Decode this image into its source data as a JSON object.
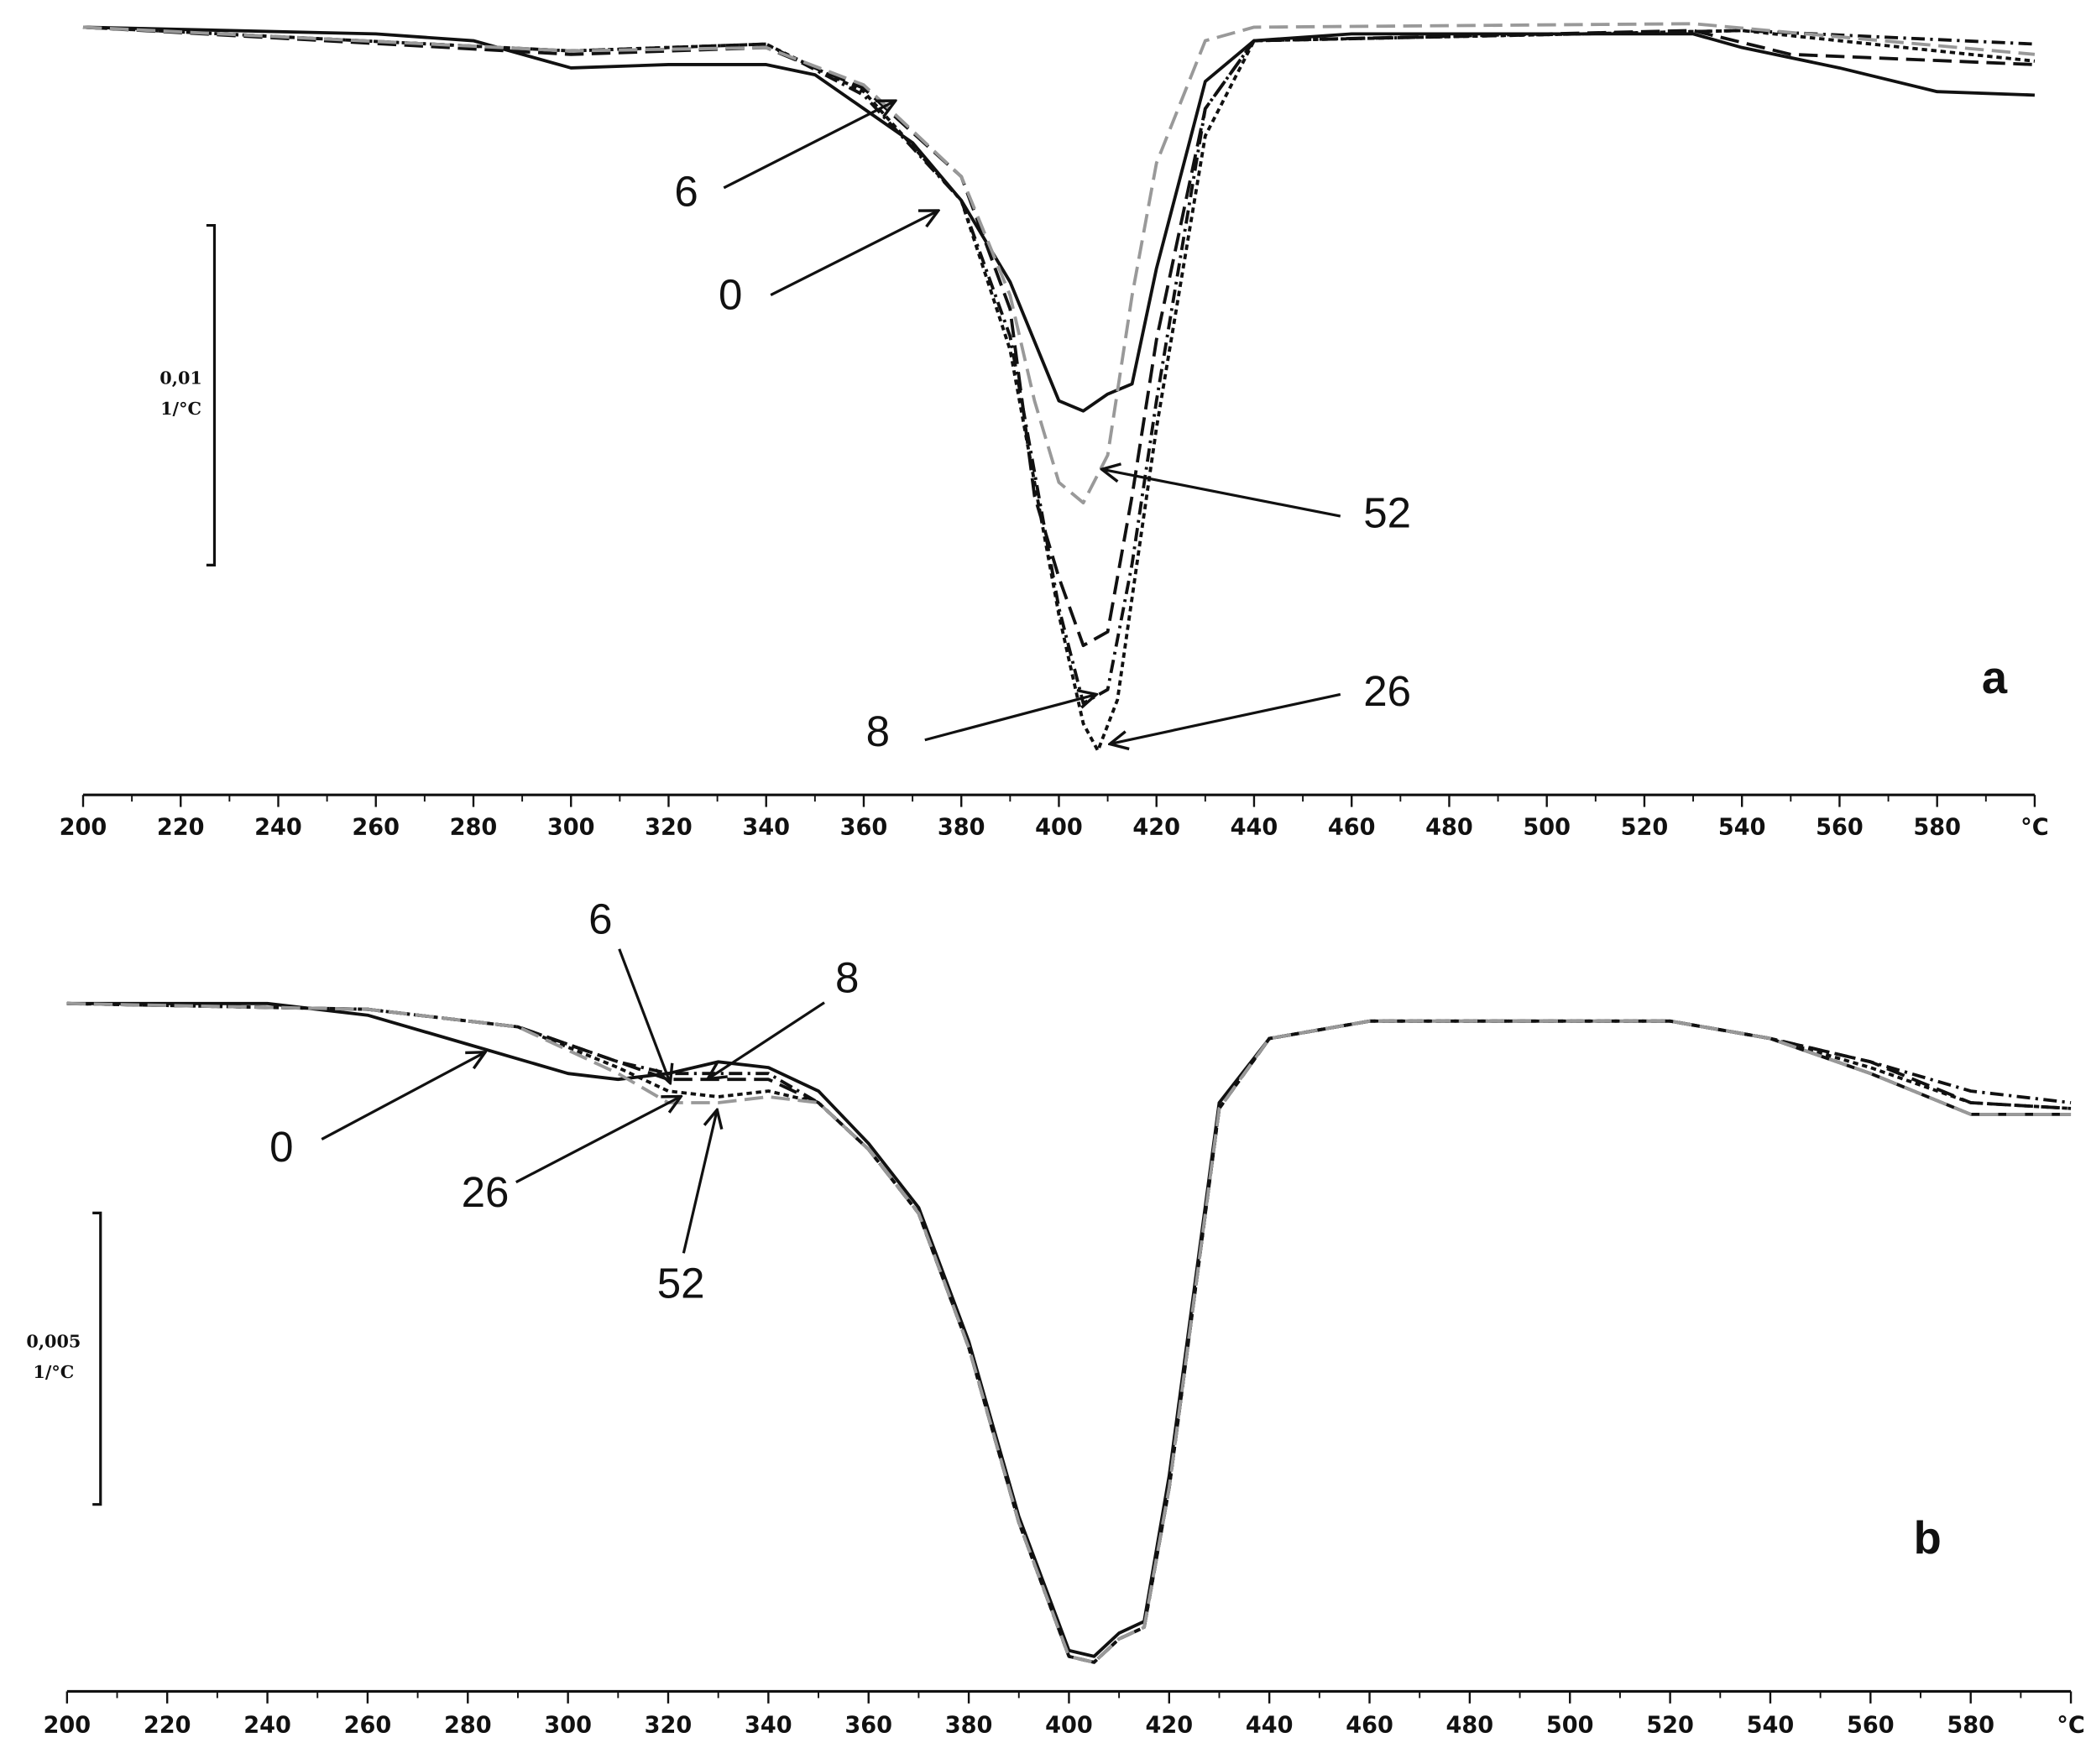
{
  "chart_data": [
    {
      "type": "line",
      "label": "a",
      "xlim": [
        200,
        600
      ],
      "ylim": [
        -0.0225,
        0.0003
      ],
      "xticks": [
        200,
        220,
        240,
        260,
        280,
        300,
        320,
        340,
        360,
        380,
        400,
        420,
        440,
        460,
        480,
        500,
        520,
        540,
        560,
        580,
        {
          "value": 600,
          "label": "°C"
        }
      ],
      "xticks_minor": [
        210,
        230,
        250,
        270,
        290,
        310,
        330,
        350,
        370,
        390,
        410,
        430,
        450,
        470,
        490,
        510,
        530,
        550,
        570,
        590
      ],
      "scale_bar": {
        "value": 0.01,
        "label": "0,01",
        "unit": "1/°C"
      },
      "series": [
        {
          "name": "0",
          "color": "#111111",
          "line_style": "solid",
          "x": [
            200,
            260,
            280,
            300,
            320,
            340,
            350,
            360,
            370,
            380,
            390,
            400,
            405,
            410,
            415,
            420,
            430,
            440,
            460,
            530,
            540,
            560,
            580,
            600
          ],
          "values": [
            0.0001,
            -0.0001,
            -0.0003,
            -0.0011,
            -0.001,
            -0.001,
            -0.0013,
            -0.0023,
            -0.0033,
            -0.005,
            -0.0074,
            -0.0109,
            -0.0112,
            -0.0107,
            -0.0104,
            -0.007,
            -0.0015,
            -0.0003,
            -0.0001,
            -0.0001,
            -0.0005,
            -0.0011,
            -0.0018,
            -0.0019
          ]
        },
        {
          "name": "6",
          "color": "#111111",
          "line_style": "long-dash",
          "x": [
            200,
            300,
            340,
            360,
            380,
            390,
            395,
            400,
            405,
            410,
            415,
            420,
            430,
            440,
            530,
            550,
            600
          ],
          "values": [
            0.0001,
            -0.0007,
            -0.0005,
            -0.0017,
            -0.0043,
            -0.0082,
            -0.0137,
            -0.0161,
            -0.0181,
            -0.0177,
            -0.0137,
            -0.0091,
            -0.0023,
            -0.0003,
            0.0,
            -0.0007,
            -0.001
          ]
        },
        {
          "name": "8",
          "color": "#111111",
          "line_style": "dash-dot",
          "x": [
            200,
            300,
            340,
            360,
            380,
            390,
            400,
            405,
            410,
            415,
            420,
            430,
            440,
            540,
            600
          ],
          "values": [
            0.0001,
            -0.0006,
            -0.0004,
            -0.0019,
            -0.005,
            -0.009,
            -0.017,
            -0.0198,
            -0.0194,
            -0.0157,
            -0.0109,
            -0.0023,
            -0.0003,
            0.0,
            -0.0004
          ]
        },
        {
          "name": "26",
          "color": "#111111",
          "line_style": "short-dash",
          "x": [
            200,
            300,
            340,
            360,
            380,
            390,
            400,
            405,
            408,
            412,
            416,
            420,
            430,
            440,
            540,
            600
          ],
          "values": [
            0.0001,
            -0.0006,
            -0.0004,
            -0.0018,
            -0.005,
            -0.0094,
            -0.0172,
            -0.0204,
            -0.0212,
            -0.0197,
            -0.0157,
            -0.0117,
            -0.0031,
            -0.0003,
            0.0,
            -0.0009
          ]
        },
        {
          "name": "52",
          "color": "#999999",
          "line_style": "long-dash",
          "x": [
            200,
            300,
            340,
            360,
            380,
            390,
            395,
            400,
            405,
            410,
            415,
            420,
            430,
            440,
            530,
            600
          ],
          "values": [
            0.0001,
            -0.0006,
            -0.0005,
            -0.0016,
            -0.0043,
            -0.0078,
            -0.0109,
            -0.0133,
            -0.0139,
            -0.0125,
            -0.0078,
            -0.0039,
            -0.0003,
            0.0001,
            0.0002,
            -0.0007
          ]
        }
      ]
    },
    {
      "type": "line",
      "label": "b",
      "xlim": [
        200,
        600
      ],
      "ylim": [
        -0.0118,
        0.0002
      ],
      "xticks": [
        200,
        220,
        240,
        260,
        280,
        300,
        320,
        340,
        360,
        380,
        400,
        420,
        440,
        460,
        480,
        500,
        520,
        540,
        560,
        580,
        {
          "value": 600,
          "label": "°C"
        }
      ],
      "xticks_minor": [
        210,
        230,
        250,
        270,
        290,
        310,
        330,
        350,
        370,
        390,
        410,
        430,
        450,
        470,
        490,
        510,
        530,
        550,
        570,
        590
      ],
      "scale_bar": {
        "value": 0.005,
        "label": "0,005",
        "unit": "1/°C"
      },
      "series": [
        {
          "name": "0",
          "color": "#111111",
          "line_style": "solid",
          "x": [
            200,
            240,
            260,
            280,
            300,
            310,
            320,
            330,
            340,
            350,
            360,
            370,
            380,
            390,
            400,
            405,
            410,
            415,
            420,
            430,
            440,
            460,
            520,
            540,
            560,
            580,
            600
          ],
          "values": [
            0.0,
            0.0,
            -0.0002,
            -0.0007,
            -0.0012,
            -0.0013,
            -0.0012,
            -0.001,
            -0.0011,
            -0.0015,
            -0.0024,
            -0.0035,
            -0.0058,
            -0.0088,
            -0.0111,
            -0.0112,
            -0.0108,
            -0.0106,
            -0.0081,
            -0.0017,
            -0.0006,
            -0.0003,
            -0.0003,
            -0.0006,
            -0.0012,
            -0.0019,
            -0.0019
          ]
        },
        {
          "name": "6",
          "color": "#111111",
          "line_style": "long-dash",
          "x": [
            200,
            260,
            290,
            310,
            320,
            330,
            340,
            350,
            360,
            370,
            380,
            390,
            400,
            405,
            410,
            415,
            420,
            430,
            440,
            460,
            520,
            540,
            560,
            580,
            600
          ],
          "values": [
            0.0,
            -0.0001,
            -0.0004,
            -0.001,
            -0.0013,
            -0.0013,
            -0.0013,
            -0.0017,
            -0.0025,
            -0.0036,
            -0.0059,
            -0.0089,
            -0.0112,
            -0.0113,
            -0.0109,
            -0.0107,
            -0.0083,
            -0.0018,
            -0.0006,
            -0.0003,
            -0.0003,
            -0.0006,
            -0.001,
            -0.0017,
            -0.0018
          ]
        },
        {
          "name": "8",
          "color": "#111111",
          "line_style": "dash-dot",
          "x": [
            200,
            260,
            290,
            310,
            320,
            330,
            340,
            350,
            360,
            370,
            380,
            390,
            400,
            405,
            410,
            415,
            420,
            430,
            440,
            460,
            520,
            540,
            560,
            580,
            600
          ],
          "values": [
            0.0,
            -0.0001,
            -0.0004,
            -0.001,
            -0.0012,
            -0.0012,
            -0.0012,
            -0.0017,
            -0.0025,
            -0.0036,
            -0.0059,
            -0.0089,
            -0.0112,
            -0.0113,
            -0.0109,
            -0.0107,
            -0.0083,
            -0.0018,
            -0.0006,
            -0.0003,
            -0.0003,
            -0.0006,
            -0.001,
            -0.0015,
            -0.0017
          ]
        },
        {
          "name": "26",
          "color": "#111111",
          "line_style": "short-dash",
          "x": [
            200,
            260,
            290,
            310,
            320,
            330,
            340,
            350,
            360,
            370,
            380,
            390,
            400,
            405,
            410,
            415,
            420,
            430,
            440,
            460,
            520,
            540,
            560,
            580,
            600
          ],
          "values": [
            0.0,
            -0.0001,
            -0.0004,
            -0.0011,
            -0.0015,
            -0.0016,
            -0.0015,
            -0.0017,
            -0.0025,
            -0.0036,
            -0.0059,
            -0.0089,
            -0.0112,
            -0.0113,
            -0.0109,
            -0.0107,
            -0.0083,
            -0.0018,
            -0.0006,
            -0.0003,
            -0.0003,
            -0.0006,
            -0.0011,
            -0.0017,
            -0.0018
          ]
        },
        {
          "name": "52",
          "color": "#999999",
          "line_style": "long-dash",
          "x": [
            200,
            260,
            290,
            310,
            320,
            330,
            340,
            350,
            360,
            370,
            380,
            390,
            400,
            405,
            410,
            415,
            420,
            430,
            440,
            460,
            520,
            540,
            560,
            580,
            600
          ],
          "values": [
            0.0,
            -0.0001,
            -0.0004,
            -0.0012,
            -0.0017,
            -0.0017,
            -0.0016,
            -0.0017,
            -0.0025,
            -0.0036,
            -0.0059,
            -0.0089,
            -0.0112,
            -0.0113,
            -0.0109,
            -0.0107,
            -0.0083,
            -0.0018,
            -0.0006,
            -0.0003,
            -0.0003,
            -0.0006,
            -0.0012,
            -0.0019,
            -0.0019
          ]
        }
      ]
    }
  ]
}
